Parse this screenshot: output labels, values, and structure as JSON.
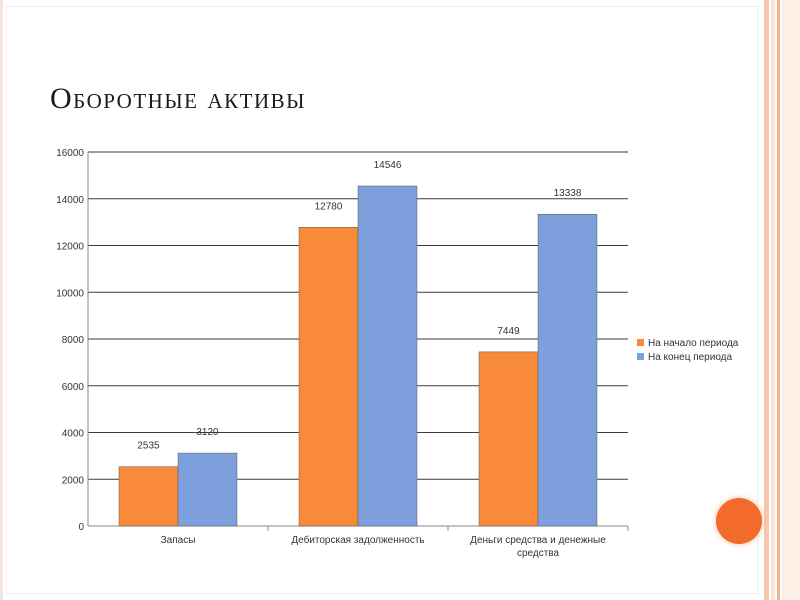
{
  "slide": {
    "title": "Оборотные активы"
  },
  "chart_data": {
    "type": "bar",
    "categories": [
      "Запасы",
      "Дебиторская задолженность",
      "Деньги средства и денежные средства"
    ],
    "category_lines": [
      [
        "Запасы"
      ],
      [
        "Дебиторская задолженность"
      ],
      [
        "Деньги средства и денежные",
        "средства"
      ]
    ],
    "series": [
      {
        "name": "На начало периода",
        "values": [
          2535,
          12780,
          7449
        ],
        "color": "#f98a3a"
      },
      {
        "name": "На конец периода",
        "values": [
          3120,
          14546,
          13338
        ],
        "color": "#7d9fdc"
      }
    ],
    "ylim": [
      0,
      16000
    ],
    "yticks": [
      0,
      2000,
      4000,
      6000,
      8000,
      10000,
      12000,
      14000,
      16000
    ],
    "grid": true,
    "legend": "right",
    "data_labels": true
  }
}
